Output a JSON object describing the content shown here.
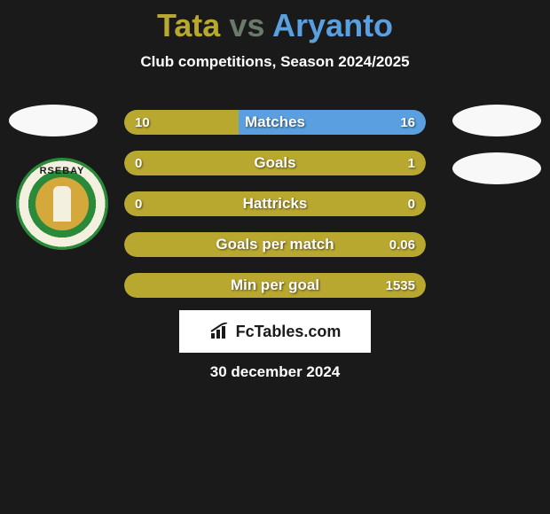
{
  "title": {
    "player1": "Tata",
    "vs": "vs",
    "player2": "Aryanto",
    "player1_color": "#b9a82f",
    "vs_color": "#6a7a6a",
    "player2_color": "#5aa0e0"
  },
  "subtitle": "Club competitions, Season 2024/2025",
  "date": "30 december 2024",
  "brand": "FcTables.com",
  "club_logo_text": "RSEBAY",
  "colors": {
    "player1_bar": "#b9a82f",
    "player2_bar": "#5aa0e0",
    "track": "#6a7a6a",
    "background": "#1a1a1a"
  },
  "stats": [
    {
      "label": "Matches",
      "left_value": "10",
      "right_value": "16",
      "left_pct": 38,
      "right_pct": 62
    },
    {
      "label": "Goals",
      "left_value": "0",
      "right_value": "1",
      "left_pct": 0,
      "right_pct": 100
    },
    {
      "label": "Hattricks",
      "left_value": "0",
      "right_value": "0",
      "left_pct": 100,
      "right_pct": 0
    },
    {
      "label": "Goals per match",
      "left_value": "",
      "right_value": "0.06",
      "left_pct": 0,
      "right_pct": 100,
      "full_yellow": true
    },
    {
      "label": "Min per goal",
      "left_value": "",
      "right_value": "1535",
      "left_pct": 0,
      "right_pct": 100,
      "full_yellow": true
    }
  ]
}
